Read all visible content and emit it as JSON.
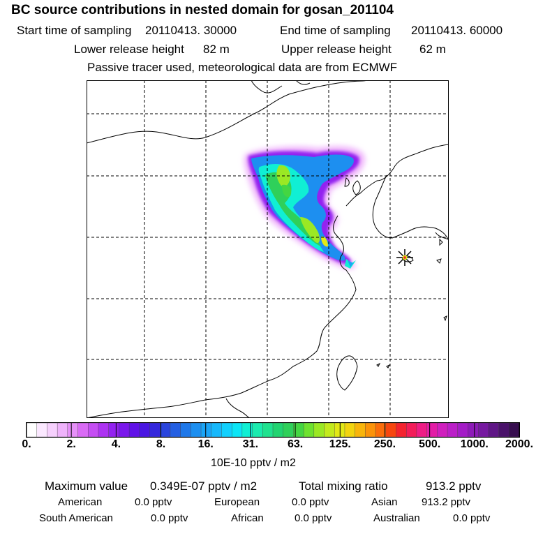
{
  "title": "BC  source contributions in nested domain for gosan_201104",
  "sampling": {
    "start_label": "Start time of sampling",
    "start_value": "20110413. 30000",
    "end_label": "End time of sampling",
    "end_value": "20110413. 60000"
  },
  "release": {
    "lower_label": "Lower release height",
    "lower_value": "82 m",
    "upper_label": "Upper release height",
    "upper_value": "62 m"
  },
  "note": "Passive tracer used, meteorological data are from ECMWF",
  "colorbar": {
    "ticks": [
      "0.",
      "2.",
      "4.",
      "8.",
      "16.",
      "31.",
      "63.",
      "125.",
      "250.",
      "500.",
      "1000.",
      "2000."
    ],
    "unit": "10E-10 pptv / m2",
    "colors": [
      "#ffffff",
      "#fbe8ff",
      "#f6d0fd",
      "#efb3fb",
      "#e690f8",
      "#d96bf5",
      "#c54ef3",
      "#ad33f2",
      "#9322f0",
      "#7a18ec",
      "#6112e8",
      "#4a16e2",
      "#3427dc",
      "#2a45dd",
      "#245fe2",
      "#1f78e9",
      "#1d8ff0",
      "#1aa4f6",
      "#17b8fb",
      "#12d0fd",
      "#0ce5f6",
      "#10efd4",
      "#1bebae",
      "#20e28f",
      "#22d471",
      "#2fd05a",
      "#44d642",
      "#6ee22f",
      "#9be824",
      "#c3ea1d",
      "#e2e815",
      "#f2d40f",
      "#f8b50c",
      "#fb930a",
      "#fb6d0b",
      "#f7460f",
      "#f4232f",
      "#f31c59",
      "#ef1c85",
      "#e31ca6",
      "#d01ebe",
      "#bb1ec8",
      "#a41cc7",
      "#8d1ab8",
      "#7619a0",
      "#5f1686",
      "#4a126a",
      "#370e4f"
    ]
  },
  "receptor_icon": "asterisk-star-icon",
  "stats": {
    "max_label": "Maximum value",
    "max_value": "0.349E-07 pptv / m2",
    "total_label": "Total mixing ratio",
    "total_value": "913.2 pptv",
    "regions": [
      {
        "name": "American",
        "value": "0.0 pptv"
      },
      {
        "name": "European",
        "value": "0.0 pptv"
      },
      {
        "name": "Asian",
        "value": "913.2 pptv"
      },
      {
        "name": "South American",
        "value": "0.0 pptv"
      },
      {
        "name": "African",
        "value": "0.0 pptv"
      },
      {
        "name": "Australian",
        "value": "0.0 pptv"
      }
    ]
  }
}
